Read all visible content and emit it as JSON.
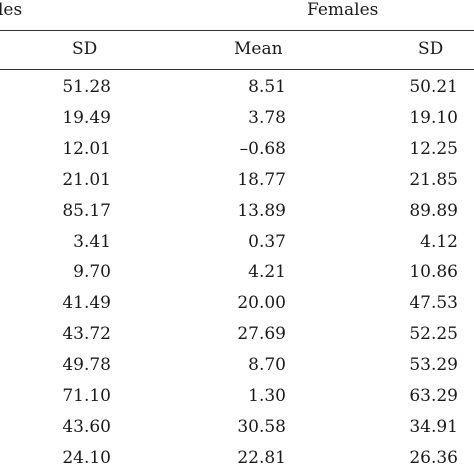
{
  "header": {
    "group_left_partial": "les",
    "group_right": "Females",
    "col_sd_1": "SD",
    "col_mean": "Mean",
    "col_sd_2": "SD"
  },
  "rows": [
    [
      "51.28",
      "8.51",
      "50.21"
    ],
    [
      "19.49",
      "3.78",
      "19.10"
    ],
    [
      "12.01",
      "–0.68",
      "12.25"
    ],
    [
      "21.01",
      "18.77",
      "21.85"
    ],
    [
      "85.17",
      "13.89",
      "89.89"
    ],
    [
      "3.41",
      "0.37",
      "4.12"
    ],
    [
      "9.70",
      "4.21",
      "10.86"
    ],
    [
      "41.49",
      "20.00",
      "47.53"
    ],
    [
      "43.72",
      "27.69",
      "52.25"
    ],
    [
      "49.78",
      "8.70",
      "53.29"
    ],
    [
      "71.10",
      "1.30",
      "63.29"
    ],
    [
      "43.60",
      "30.58",
      "34.91"
    ],
    [
      "24.10",
      "22.81",
      "26.36"
    ]
  ]
}
